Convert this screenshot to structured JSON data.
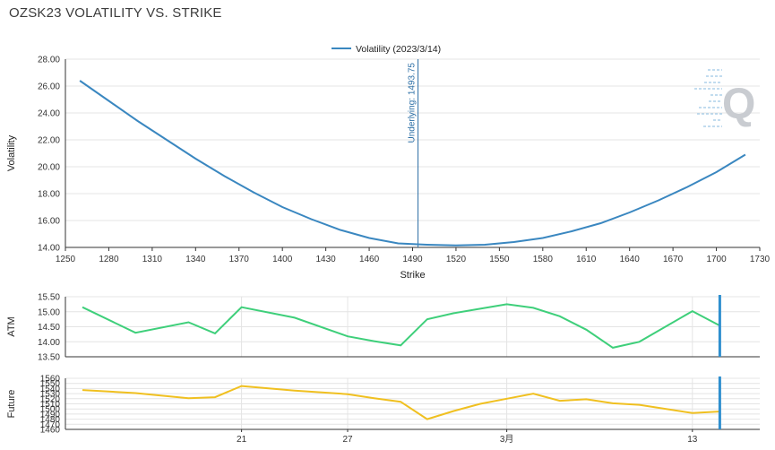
{
  "page": {
    "title": "OZSK23 VOLATILITY VS. STRIKE"
  },
  "colors": {
    "volatility": "#3a87c0",
    "atm": "#3ecf7a",
    "future": "#f0c020",
    "marker": "#2f8fcf"
  },
  "logo": {
    "text": "Q",
    "icon": "q-watermark-icon"
  },
  "chart_data": [
    {
      "type": "line",
      "legend": "top-center",
      "xlabel": "Strike",
      "ylabel": "Volatility",
      "xlim": [
        1250,
        1730
      ],
      "ylim": [
        14,
        28
      ],
      "xticks": [
        1250,
        1280,
        1310,
        1340,
        1370,
        1400,
        1430,
        1460,
        1490,
        1520,
        1550,
        1580,
        1610,
        1640,
        1670,
        1700,
        1730
      ],
      "yticks": [
        "14.00",
        "16.00",
        "18.00",
        "20.00",
        "22.00",
        "24.00",
        "26.00",
        "28.00"
      ],
      "yticks_values": [
        14,
        16,
        18,
        20,
        22,
        24,
        26,
        28
      ],
      "annotation": {
        "label": "Underlying: 1493.75",
        "x": 1493.75
      },
      "series": [
        {
          "name": "Volatility (2023/3/14)",
          "x": [
            1260,
            1280,
            1300,
            1320,
            1340,
            1360,
            1380,
            1400,
            1420,
            1440,
            1460,
            1480,
            1500,
            1520,
            1540,
            1560,
            1580,
            1600,
            1620,
            1640,
            1660,
            1680,
            1700,
            1720
          ],
          "y": [
            26.4,
            24.9,
            23.4,
            22.0,
            20.6,
            19.3,
            18.1,
            17.0,
            16.1,
            15.3,
            14.7,
            14.3,
            14.2,
            14.15,
            14.2,
            14.4,
            14.7,
            15.2,
            15.8,
            16.6,
            17.5,
            18.5,
            19.6,
            20.9
          ]
        }
      ]
    },
    {
      "type": "line",
      "ylabel": "ATM",
      "ylim": [
        13.5,
        15.5
      ],
      "yticks": [
        "13.50",
        "14.00",
        "14.50",
        "15.00",
        "15.50"
      ],
      "yticks_values": [
        13.5,
        14.0,
        14.5,
        15.0,
        15.5
      ],
      "xticks": [
        {
          "label": "21",
          "index": 6
        },
        {
          "label": "27",
          "index": 10
        },
        {
          "label": "3月",
          "index": 16
        },
        {
          "label": "13",
          "index": 23
        }
      ],
      "series": [
        {
          "name": "ATM",
          "values": [
            15.15,
            14.3,
            14.65,
            14.28,
            15.15,
            14.8,
            14.18,
            14.02,
            13.88,
            14.75,
            14.95,
            15.1,
            15.25,
            15.13,
            14.85,
            14.4,
            13.8,
            14.0,
            15.02,
            14.55
          ]
        }
      ]
    },
    {
      "type": "line",
      "ylabel": "Future",
      "ylim": [
        1460,
        1560
      ],
      "yticks": [
        "1460",
        "1470",
        "1480",
        "1490",
        "1500",
        "1510",
        "1520",
        "1530",
        "1540",
        "1550",
        "1560"
      ],
      "yticks_values": [
        1460,
        1470,
        1480,
        1490,
        1500,
        1510,
        1520,
        1530,
        1540,
        1550,
        1560
      ],
      "xticks": [
        {
          "label": "21",
          "index": 6
        },
        {
          "label": "27",
          "index": 10
        },
        {
          "label": "3月",
          "index": 16
        },
        {
          "label": "13",
          "index": 23
        }
      ],
      "series": [
        {
          "name": "Future",
          "values": [
            1537,
            1531,
            1521,
            1523,
            1545,
            1536,
            1529,
            1521,
            1514,
            1480,
            1496,
            1510,
            1520,
            1530,
            1516,
            1519,
            1511,
            1508,
            1492,
            1495
          ]
        }
      ]
    }
  ],
  "bottom_dates": {
    "trading_day_index": [
      0,
      1,
      2,
      3,
      4,
      5,
      6,
      7,
      8,
      9,
      10,
      11,
      12,
      13,
      14,
      15,
      16,
      17,
      18,
      19
    ],
    "day_positions": [
      0,
      2,
      4,
      5,
      6,
      8,
      10,
      11,
      12,
      13,
      14,
      15,
      16,
      17,
      18,
      19,
      20,
      21,
      23,
      24
    ],
    "day_range": [
      0,
      25
    ]
  }
}
